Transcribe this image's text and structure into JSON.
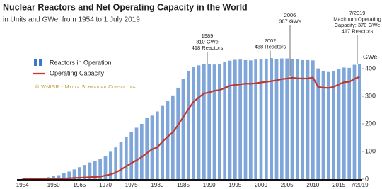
{
  "chart_data": {
    "type": "bar-line",
    "title": "Nuclear Reactors and Net Operating Capacity in the World",
    "subtitle": "in Units and GWe, from 1954 to 1 July 2019",
    "source": "© WNISR - Mycle Schneider Consulting",
    "y_label": "GWe",
    "categories": [
      "1954",
      null,
      null,
      null,
      null,
      null,
      "1960",
      null,
      null,
      null,
      null,
      "1965",
      null,
      null,
      null,
      null,
      "1970",
      null,
      null,
      null,
      null,
      "1975",
      null,
      null,
      null,
      null,
      "1980",
      null,
      null,
      null,
      null,
      "1985",
      null,
      null,
      null,
      null,
      "1990",
      null,
      null,
      null,
      null,
      "1995",
      null,
      null,
      null,
      null,
      "2000",
      null,
      null,
      null,
      null,
      "2005",
      null,
      null,
      null,
      null,
      "2010",
      null,
      null,
      null,
      null,
      "2015",
      null,
      null,
      null,
      "7/2019"
    ],
    "series": [
      {
        "name": "Reactors in Operation",
        "color": "#7fa6da",
        "values": [
          1,
          1,
          2,
          3,
          4,
          7,
          12,
          14,
          22,
          27,
          35,
          43,
          51,
          60,
          66,
          74,
          84,
          99,
          115,
          135,
          153,
          170,
          186,
          200,
          221,
          230,
          245,
          265,
          283,
          303,
          331,
          363,
          390,
          405,
          412,
          418,
          416,
          415,
          418,
          424,
          429,
          432,
          433,
          431,
          430,
          433,
          434,
          436,
          438,
          435,
          437,
          437,
          435,
          434,
          431,
          431,
          430,
          401,
          390,
          388,
          391,
          399,
          404,
          403,
          414,
          417
        ]
      },
      {
        "name": "Operating Capacity",
        "color": "#c0392b",
        "values": [
          0,
          0,
          0.1,
          0.2,
          0.4,
          0.8,
          1,
          1.5,
          2,
          3,
          4,
          5,
          6,
          7,
          8,
          9,
          13,
          17,
          24,
          34,
          46,
          58,
          68,
          80,
          94,
          108,
          115,
          136,
          153,
          170,
          196,
          225,
          253,
          280,
          296,
          310,
          314,
          320,
          322,
          330,
          338,
          341,
          343,
          346,
          345,
          347,
          350,
          352,
          355,
          358,
          362,
          364,
          367,
          365,
          364,
          364,
          368,
          334,
          331,
          330,
          334,
          343,
          351,
          352,
          363,
          370
        ]
      }
    ],
    "ylim": [
      0,
      450
    ],
    "yticks": [
      0,
      100,
      200,
      300,
      400
    ],
    "annotations": [
      {
        "lines": [
          "1989",
          "310 GWe",
          "418 Reactors"
        ]
      },
      {
        "lines": [
          "2002",
          "438 Reactors"
        ]
      },
      {
        "lines": [
          "2006",
          "367 GWe"
        ]
      },
      {
        "lines": [
          "7/2019",
          "Maximum Operating",
          "Capacity: 370 GWe",
          "417 Reactors"
        ]
      }
    ]
  }
}
